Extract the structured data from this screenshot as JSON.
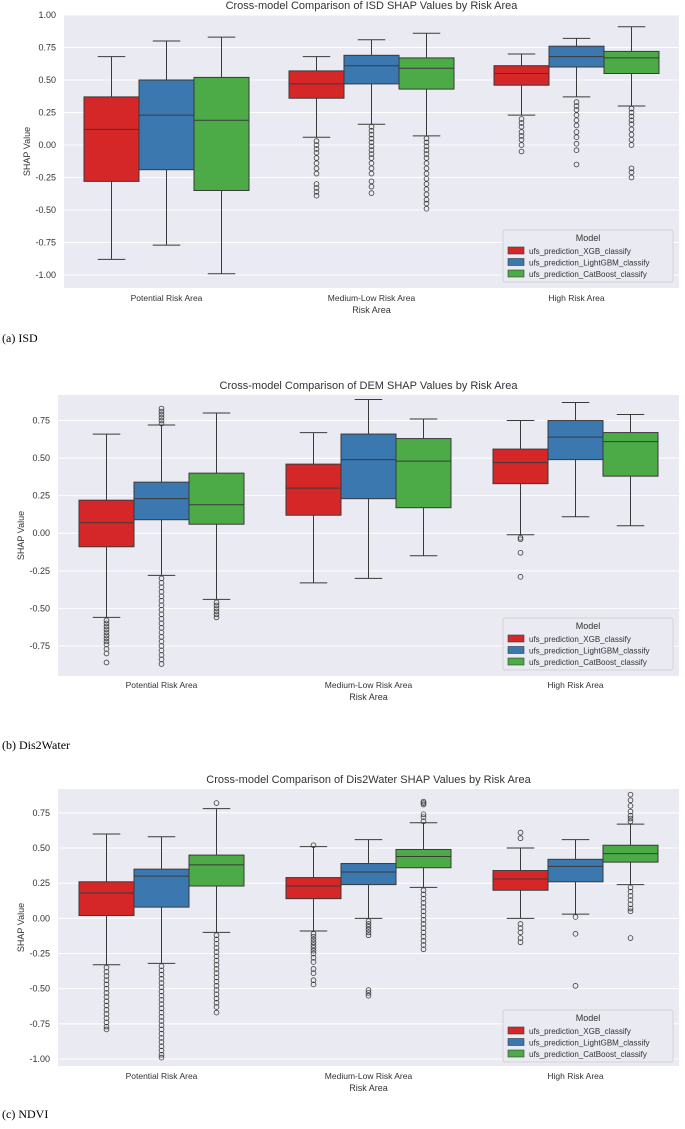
{
  "palette": {
    "XGB": "#d62728",
    "LightGBM": "#3b78b0",
    "CatBoost": "#4caa47",
    "bg": "#eaeaf2",
    "grid": "#ffffff",
    "line": "#3a3a3a"
  },
  "chart_data": [
    {
      "type": "box",
      "title": "Cross-model Comparison of ISD SHAP Values by Risk Area",
      "xlabel": "Risk Area",
      "ylabel": "SHAP Value",
      "caption": "(a) ISD",
      "ylim": [
        -1.1,
        1.0
      ],
      "yticks": [
        -1.0,
        -0.75,
        -0.5,
        -0.25,
        0.0,
        0.25,
        0.5,
        0.75,
        1.0
      ],
      "ytick_labels": [
        "-1.00",
        "-0.75",
        "-0.50",
        "-0.25",
        "0.00",
        "0.25",
        "0.50",
        "0.75",
        "1.00"
      ],
      "categories": [
        "Potential Risk Area",
        "Medium-Low Risk Area",
        "High Risk Area"
      ],
      "legend": {
        "title": "Model",
        "location": "lower right",
        "entries": [
          "ufs_prediction_XGB_classify",
          "ufs_prediction_LightGBM_classify",
          "ufs_prediction_CatBoost_classify"
        ]
      },
      "series": [
        {
          "name": "ufs_prediction_XGB_classify",
          "key": "XGB",
          "boxes": [
            {
              "whislo": -0.88,
              "q1": -0.28,
              "med": 0.12,
              "q3": 0.37,
              "whishi": 0.68,
              "fliers": []
            },
            {
              "whislo": 0.06,
              "q1": 0.36,
              "med": 0.47,
              "q3": 0.57,
              "whishi": 0.68,
              "fliers": [
                0.03,
                0.0,
                -0.03,
                -0.06,
                -0.1,
                -0.14,
                -0.18,
                -0.22,
                -0.3,
                -0.33,
                -0.36,
                -0.39
              ]
            },
            {
              "whislo": 0.23,
              "q1": 0.46,
              "med": 0.55,
              "q3": 0.61,
              "whishi": 0.7,
              "fliers": [
                0.2,
                0.17,
                0.14,
                0.1,
                0.07,
                0.04,
                0.0,
                -0.05
              ]
            }
          ]
        },
        {
          "name": "ufs_prediction_LightGBM_classify",
          "key": "LightGBM",
          "boxes": [
            {
              "whislo": -0.77,
              "q1": -0.19,
              "med": 0.23,
              "q3": 0.5,
              "whishi": 0.8,
              "fliers": []
            },
            {
              "whislo": 0.16,
              "q1": 0.47,
              "med": 0.61,
              "q3": 0.69,
              "whishi": 0.81,
              "fliers": [
                0.14,
                0.11,
                0.08,
                0.05,
                0.02,
                -0.01,
                -0.04,
                -0.07,
                -0.1,
                -0.14,
                -0.18,
                -0.22,
                -0.28,
                -0.32,
                -0.37
              ]
            },
            {
              "whislo": 0.37,
              "q1": 0.6,
              "med": 0.68,
              "q3": 0.76,
              "whishi": 0.82,
              "fliers": [
                0.33,
                0.3,
                0.27,
                0.23,
                0.19,
                0.15,
                0.1,
                0.06,
                0.01,
                -0.04,
                -0.15
              ]
            }
          ]
        },
        {
          "name": "ufs_prediction_CatBoost_classify",
          "key": "CatBoost",
          "boxes": [
            {
              "whislo": -0.99,
              "q1": -0.35,
              "med": 0.19,
              "q3": 0.52,
              "whishi": 0.83,
              "fliers": []
            },
            {
              "whislo": 0.07,
              "q1": 0.43,
              "med": 0.59,
              "q3": 0.67,
              "whishi": 0.86,
              "fliers": [
                0.05,
                0.02,
                -0.01,
                -0.04,
                -0.07,
                -0.1,
                -0.14,
                -0.18,
                -0.22,
                -0.26,
                -0.3,
                -0.34,
                -0.38,
                -0.42,
                -0.45,
                -0.49
              ]
            },
            {
              "whislo": 0.3,
              "q1": 0.55,
              "med": 0.67,
              "q3": 0.72,
              "whishi": 0.91,
              "fliers": [
                0.28,
                0.25,
                0.22,
                0.19,
                0.16,
                0.12,
                0.08,
                0.04,
                0.0,
                -0.18,
                -0.21,
                -0.25
              ]
            }
          ]
        }
      ]
    },
    {
      "type": "box",
      "title": "Cross-model Comparison of DEM SHAP Values by Risk Area",
      "xlabel": "Risk Area",
      "ylabel": "SHAP Value",
      "caption": "(b) Dis2Water",
      "ylim": [
        -0.95,
        0.92
      ],
      "yticks": [
        -0.75,
        -0.5,
        -0.25,
        0.0,
        0.25,
        0.5,
        0.75
      ],
      "ytick_labels": [
        "-0.75",
        "-0.50",
        "-0.25",
        "0.00",
        "0.25",
        "0.50",
        "0.75"
      ],
      "categories": [
        "Potential Risk Area",
        "Medium-Low Risk Area",
        "High Risk Area"
      ],
      "legend": {
        "title": "Model",
        "location": "lower right",
        "entries": [
          "ufs_prediction_XGB_classify",
          "ufs_prediction_LightGBM_classify",
          "ufs_prediction_CatBoost_classify"
        ]
      },
      "series": [
        {
          "name": "ufs_prediction_XGB_classify",
          "key": "XGB",
          "boxes": [
            {
              "whislo": -0.56,
              "q1": -0.09,
              "med": 0.07,
              "q3": 0.22,
              "whishi": 0.66,
              "fliers": [
                -0.58,
                -0.6,
                -0.62,
                -0.64,
                -0.66,
                -0.68,
                -0.7,
                -0.72,
                -0.74,
                -0.77,
                -0.8,
                -0.86
              ]
            },
            {
              "whislo": -0.33,
              "q1": 0.12,
              "med": 0.3,
              "q3": 0.46,
              "whishi": 0.67,
              "fliers": []
            },
            {
              "whislo": -0.01,
              "q1": 0.33,
              "med": 0.47,
              "q3": 0.56,
              "whishi": 0.75,
              "fliers": [
                -0.03,
                -0.04,
                -0.13,
                -0.29
              ]
            }
          ]
        },
        {
          "name": "ufs_prediction_LightGBM_classify",
          "key": "LightGBM",
          "boxes": [
            {
              "whislo": -0.28,
              "q1": 0.09,
              "med": 0.23,
              "q3": 0.34,
              "whishi": 0.72,
              "fliers": [
                0.73,
                0.75,
                0.77,
                0.79,
                0.81,
                0.83,
                -0.3,
                -0.33,
                -0.36,
                -0.39,
                -0.42,
                -0.45,
                -0.48,
                -0.51,
                -0.54,
                -0.57,
                -0.6,
                -0.63,
                -0.66,
                -0.69,
                -0.72,
                -0.75,
                -0.78,
                -0.81,
                -0.84,
                -0.87
              ]
            },
            {
              "whislo": -0.3,
              "q1": 0.23,
              "med": 0.49,
              "q3": 0.66,
              "whishi": 0.89,
              "fliers": []
            },
            {
              "whislo": 0.11,
              "q1": 0.49,
              "med": 0.64,
              "q3": 0.75,
              "whishi": 0.87,
              "fliers": []
            }
          ]
        },
        {
          "name": "ufs_prediction_CatBoost_classify",
          "key": "CatBoost",
          "boxes": [
            {
              "whislo": -0.44,
              "q1": 0.06,
              "med": 0.19,
              "q3": 0.4,
              "whishi": 0.8,
              "fliers": [
                -0.46,
                -0.48,
                -0.5,
                -0.52,
                -0.54,
                -0.56
              ]
            },
            {
              "whislo": -0.15,
              "q1": 0.17,
              "med": 0.48,
              "q3": 0.63,
              "whishi": 0.76,
              "fliers": []
            },
            {
              "whislo": 0.05,
              "q1": 0.38,
              "med": 0.61,
              "q3": 0.67,
              "whishi": 0.79,
              "fliers": []
            }
          ]
        }
      ]
    },
    {
      "type": "box",
      "title": "Cross-model Comparison of Dis2Water SHAP Values by Risk Area",
      "xlabel": "Risk Area",
      "ylabel": "SHAP Value",
      "caption": "(c) NDVI",
      "ylim": [
        -1.05,
        0.92
      ],
      "yticks": [
        -1.0,
        -0.75,
        -0.5,
        -0.25,
        0.0,
        0.25,
        0.5,
        0.75
      ],
      "ytick_labels": [
        "-1.00",
        "-0.75",
        "-0.50",
        "-0.25",
        "0.00",
        "0.25",
        "0.50",
        "0.75"
      ],
      "categories": [
        "Potential Risk Area",
        "Medium-Low Risk Area",
        "High Risk Area"
      ],
      "legend": {
        "title": "Model",
        "location": "lower right",
        "entries": [
          "ufs_prediction_XGB_classify",
          "ufs_prediction_LightGBM_classify",
          "ufs_prediction_CatBoost_classify"
        ]
      },
      "series": [
        {
          "name": "ufs_prediction_XGB_classify",
          "key": "XGB",
          "boxes": [
            {
              "whislo": -0.33,
              "q1": 0.02,
              "med": 0.18,
              "q3": 0.26,
              "whishi": 0.6,
              "fliers": [
                -0.35,
                -0.38,
                -0.41,
                -0.44,
                -0.47,
                -0.5,
                -0.53,
                -0.56,
                -0.59,
                -0.62,
                -0.65,
                -0.68,
                -0.71,
                -0.74,
                -0.77,
                -0.79
              ]
            },
            {
              "whislo": -0.09,
              "q1": 0.14,
              "med": 0.23,
              "q3": 0.29,
              "whishi": 0.51,
              "fliers": [
                0.52,
                -0.11,
                -0.13,
                -0.15,
                -0.17,
                -0.19,
                -0.21,
                -0.23,
                -0.25,
                -0.28,
                -0.31,
                -0.36,
                -0.39,
                -0.44,
                -0.47
              ]
            },
            {
              "whislo": 0.0,
              "q1": 0.2,
              "med": 0.28,
              "q3": 0.34,
              "whishi": 0.5,
              "fliers": [
                0.57,
                0.61,
                -0.04,
                -0.07,
                -0.1,
                -0.14,
                -0.17
              ]
            }
          ]
        },
        {
          "name": "ufs_prediction_LightGBM_classify",
          "key": "LightGBM",
          "boxes": [
            {
              "whislo": -0.32,
              "q1": 0.08,
              "med": 0.3,
              "q3": 0.35,
              "whishi": 0.58,
              "fliers": [
                -0.34,
                -0.37,
                -0.4,
                -0.43,
                -0.46,
                -0.49,
                -0.52,
                -0.55,
                -0.58,
                -0.61,
                -0.64,
                -0.67,
                -0.7,
                -0.73,
                -0.76,
                -0.79,
                -0.82,
                -0.85,
                -0.88,
                -0.91,
                -0.94,
                -0.97,
                -0.99
              ]
            },
            {
              "whislo": 0.0,
              "q1": 0.24,
              "med": 0.33,
              "q3": 0.39,
              "whishi": 0.56,
              "fliers": [
                -0.02,
                -0.04,
                -0.06,
                -0.08,
                -0.1,
                -0.12,
                -0.51,
                -0.53,
                -0.55
              ]
            },
            {
              "whislo": 0.03,
              "q1": 0.26,
              "med": 0.37,
              "q3": 0.42,
              "whishi": 0.56,
              "fliers": [
                0.01,
                -0.11,
                -0.48
              ]
            }
          ]
        },
        {
          "name": "ufs_prediction_CatBoost_classify",
          "key": "CatBoost",
          "boxes": [
            {
              "whislo": -0.1,
              "q1": 0.23,
              "med": 0.38,
              "q3": 0.45,
              "whishi": 0.78,
              "fliers": [
                0.82,
                -0.12,
                -0.15,
                -0.18,
                -0.21,
                -0.24,
                -0.27,
                -0.3,
                -0.33,
                -0.36,
                -0.39,
                -0.42,
                -0.45,
                -0.48,
                -0.51,
                -0.54,
                -0.57,
                -0.6,
                -0.63,
                -0.67
              ]
            },
            {
              "whislo": 0.22,
              "q1": 0.36,
              "med": 0.44,
              "q3": 0.49,
              "whishi": 0.68,
              "fliers": [
                0.69,
                0.72,
                0.74,
                0.81,
                0.82,
                0.83,
                0.2,
                0.17,
                0.14,
                0.11,
                0.08,
                0.05,
                0.02,
                -0.01,
                -0.04,
                -0.07,
                -0.1,
                -0.13,
                -0.16,
                -0.19,
                -0.22
              ]
            },
            {
              "whislo": 0.24,
              "q1": 0.4,
              "med": 0.46,
              "q3": 0.52,
              "whishi": 0.67,
              "fliers": [
                0.69,
                0.71,
                0.73,
                0.76,
                0.8,
                0.84,
                0.88,
                0.22,
                0.19,
                0.16,
                0.13,
                0.1,
                0.07,
                0.05,
                -0.14
              ]
            }
          ]
        }
      ]
    }
  ]
}
